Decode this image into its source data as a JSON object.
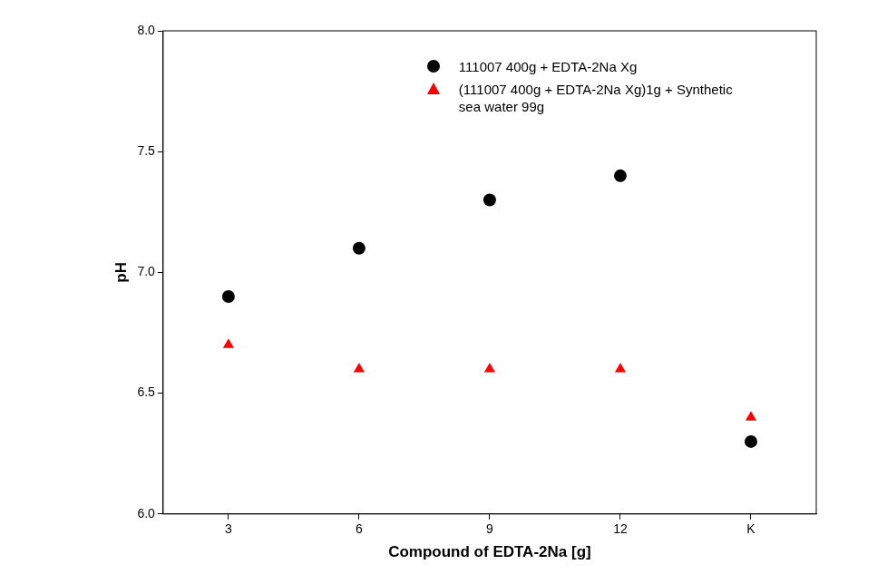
{
  "chart_data": {
    "type": "scatter",
    "x_label": "Compound of EDTA-2Na [g]",
    "y_label": "pH",
    "categories": [
      "3",
      "6",
      "9",
      "12",
      "K"
    ],
    "series": [
      {
        "name": "111007 400g + EDTA-2Na Xg",
        "color": "#000000",
        "marker": "circle",
        "values": [
          6.9,
          7.1,
          7.3,
          7.4,
          6.3
        ]
      },
      {
        "name": "(111007 400g + EDTA-2Na Xg)1g + Synthetic sea water 99g",
        "color": "#ff0000",
        "marker": "triangle",
        "values": [
          6.7,
          6.6,
          6.6,
          6.6,
          6.4
        ]
      }
    ],
    "ylim": [
      6.0,
      8.0
    ],
    "yticks": [
      {
        "value": 6,
        "label": "6.0"
      },
      {
        "value": 6.5,
        "label": "6.5"
      },
      {
        "value": 7,
        "label": "7.0"
      },
      {
        "value": 7.5,
        "label": "7.5"
      },
      {
        "value": 8,
        "label": "8.0"
      }
    ],
    "grid": false,
    "legend": "upper right"
  }
}
